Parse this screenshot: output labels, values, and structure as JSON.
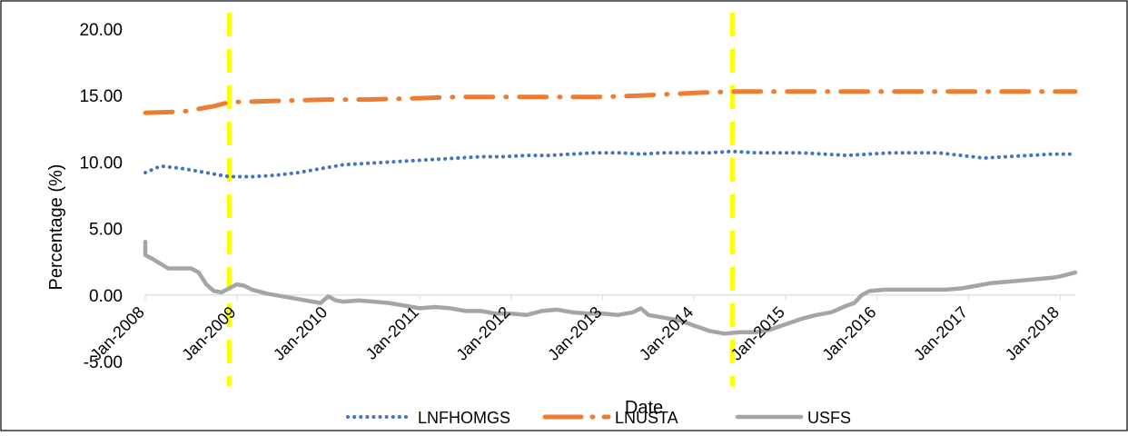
{
  "chart_data": {
    "type": "line",
    "title": "",
    "xlabel": "Date",
    "ylabel": "Percentage (%)",
    "ylim": [
      -5,
      20
    ],
    "yticks": [
      "-5.00",
      "0.00",
      "5.00",
      "10.00",
      "15.00",
      "20.00"
    ],
    "xlim": [
      "2008-01",
      "2018-03"
    ],
    "xticks": [
      "Jan-2008",
      "Jan-2009",
      "Jan-2010",
      "Jan-2011",
      "Jan-2012",
      "Jan-2013",
      "Jan-2014",
      "Jan-2015",
      "Jan-2016",
      "Jan-2017",
      "Jan-2018"
    ],
    "grid": false,
    "legend_position": "bottom",
    "vertical_markers": [
      {
        "x": "2008-12",
        "color": "#FFFF00",
        "style": "dashed"
      },
      {
        "x": "2014-06",
        "color": "#FFFF00",
        "style": "dashed"
      }
    ],
    "series": [
      {
        "name": "LNFHOMGS",
        "color": "#4472C4",
        "style": "dotted",
        "points": [
          [
            "2008-01",
            9.2
          ],
          [
            "2008-03",
            9.7
          ],
          [
            "2008-06",
            9.5
          ],
          [
            "2008-09",
            9.2
          ],
          [
            "2008-12",
            8.9
          ],
          [
            "2009-03",
            8.9
          ],
          [
            "2009-06",
            9.0
          ],
          [
            "2009-09",
            9.2
          ],
          [
            "2009-12",
            9.5
          ],
          [
            "2010-03",
            9.8
          ],
          [
            "2010-06",
            9.9
          ],
          [
            "2010-09",
            10.0
          ],
          [
            "2010-12",
            10.1
          ],
          [
            "2011-03",
            10.2
          ],
          [
            "2011-06",
            10.3
          ],
          [
            "2011-09",
            10.4
          ],
          [
            "2011-12",
            10.4
          ],
          [
            "2012-03",
            10.5
          ],
          [
            "2012-06",
            10.5
          ],
          [
            "2012-09",
            10.6
          ],
          [
            "2012-12",
            10.7
          ],
          [
            "2013-03",
            10.7
          ],
          [
            "2013-06",
            10.6
          ],
          [
            "2013-09",
            10.7
          ],
          [
            "2013-12",
            10.7
          ],
          [
            "2014-03",
            10.7
          ],
          [
            "2014-06",
            10.8
          ],
          [
            "2014-09",
            10.7
          ],
          [
            "2014-12",
            10.7
          ],
          [
            "2015-03",
            10.7
          ],
          [
            "2015-06",
            10.6
          ],
          [
            "2015-09",
            10.5
          ],
          [
            "2015-12",
            10.6
          ],
          [
            "2016-03",
            10.7
          ],
          [
            "2016-06",
            10.7
          ],
          [
            "2016-09",
            10.7
          ],
          [
            "2016-12",
            10.5
          ],
          [
            "2017-03",
            10.3
          ],
          [
            "2017-06",
            10.4
          ],
          [
            "2017-09",
            10.5
          ],
          [
            "2017-12",
            10.6
          ],
          [
            "2018-03",
            10.6
          ]
        ]
      },
      {
        "name": "LNUSTA",
        "color": "#ED7D31",
        "style": "dashdot",
        "points": [
          [
            "2008-01",
            13.7
          ],
          [
            "2008-06",
            13.8
          ],
          [
            "2008-10",
            14.2
          ],
          [
            "2008-12",
            14.5
          ],
          [
            "2009-06",
            14.6
          ],
          [
            "2010-01",
            14.7
          ],
          [
            "2010-06",
            14.7
          ],
          [
            "2011-01",
            14.8
          ],
          [
            "2011-06",
            14.9
          ],
          [
            "2012-01",
            14.9
          ],
          [
            "2012-06",
            14.9
          ],
          [
            "2013-01",
            14.9
          ],
          [
            "2013-06",
            15.0
          ],
          [
            "2014-01",
            15.2
          ],
          [
            "2014-06",
            15.3
          ],
          [
            "2015-01",
            15.3
          ],
          [
            "2015-06",
            15.3
          ],
          [
            "2016-01",
            15.3
          ],
          [
            "2016-06",
            15.3
          ],
          [
            "2017-01",
            15.3
          ],
          [
            "2017-06",
            15.3
          ],
          [
            "2018-03",
            15.3
          ]
        ]
      },
      {
        "name": "USFS",
        "color": "#A5A5A5",
        "style": "solid",
        "points": [
          [
            "2008-01",
            4.0
          ],
          [
            "2008-01",
            3.0
          ],
          [
            "2008-02",
            2.7
          ],
          [
            "2008-04",
            2.0
          ],
          [
            "2008-07",
            2.0
          ],
          [
            "2008-08",
            1.7
          ],
          [
            "2008-09",
            0.8
          ],
          [
            "2008-10",
            0.3
          ],
          [
            "2008-11",
            0.2
          ],
          [
            "2008-12",
            0.5
          ],
          [
            "2009-01",
            0.8
          ],
          [
            "2009-02",
            0.7
          ],
          [
            "2009-03",
            0.4
          ],
          [
            "2009-05",
            0.1
          ],
          [
            "2009-07",
            -0.1
          ],
          [
            "2009-09",
            -0.3
          ],
          [
            "2009-11",
            -0.5
          ],
          [
            "2009-12",
            -0.6
          ],
          [
            "2010-01",
            -0.1
          ],
          [
            "2010-02",
            -0.4
          ],
          [
            "2010-03",
            -0.5
          ],
          [
            "2010-05",
            -0.4
          ],
          [
            "2010-07",
            -0.5
          ],
          [
            "2010-09",
            -0.6
          ],
          [
            "2010-11",
            -0.8
          ],
          [
            "2011-01",
            -1.0
          ],
          [
            "2011-03",
            -0.9
          ],
          [
            "2011-05",
            -1.0
          ],
          [
            "2011-07",
            -1.2
          ],
          [
            "2011-09",
            -1.2
          ],
          [
            "2011-11",
            -1.4
          ],
          [
            "2012-01",
            -1.4
          ],
          [
            "2012-03",
            -1.5
          ],
          [
            "2012-05",
            -1.2
          ],
          [
            "2012-07",
            -1.1
          ],
          [
            "2012-09",
            -1.3
          ],
          [
            "2012-11",
            -1.4
          ],
          [
            "2013-01",
            -1.4
          ],
          [
            "2013-03",
            -1.5
          ],
          [
            "2013-05",
            -1.3
          ],
          [
            "2013-06",
            -1.0
          ],
          [
            "2013-07",
            -1.5
          ],
          [
            "2013-09",
            -1.7
          ],
          [
            "2013-11",
            -1.9
          ],
          [
            "2014-01",
            -2.3
          ],
          [
            "2014-03",
            -2.7
          ],
          [
            "2014-05",
            -2.9
          ],
          [
            "2014-07",
            -2.8
          ],
          [
            "2014-09",
            -2.8
          ],
          [
            "2014-11",
            -2.6
          ],
          [
            "2015-01",
            -2.2
          ],
          [
            "2015-03",
            -1.8
          ],
          [
            "2015-05",
            -1.5
          ],
          [
            "2015-07",
            -1.3
          ],
          [
            "2015-09",
            -0.8
          ],
          [
            "2015-10",
            -0.6
          ],
          [
            "2015-11",
            0.0
          ],
          [
            "2015-12",
            0.3
          ],
          [
            "2016-02",
            0.4
          ],
          [
            "2016-06",
            0.4
          ],
          [
            "2016-10",
            0.4
          ],
          [
            "2016-12",
            0.5
          ],
          [
            "2017-02",
            0.7
          ],
          [
            "2017-04",
            0.9
          ],
          [
            "2017-06",
            1.0
          ],
          [
            "2017-08",
            1.1
          ],
          [
            "2017-10",
            1.2
          ],
          [
            "2017-12",
            1.3
          ],
          [
            "2018-01",
            1.4
          ],
          [
            "2018-03",
            1.7
          ]
        ]
      }
    ]
  }
}
